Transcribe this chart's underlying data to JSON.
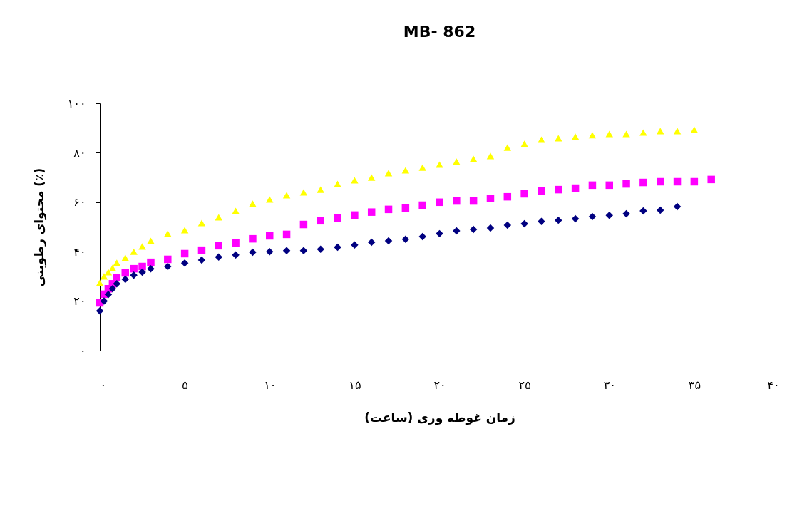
{
  "chart_data": {
    "type": "scatter",
    "title": "MB- 862",
    "xlabel": "زمان غوطه وری (ساعت)",
    "ylabel": "محتوای رطوبتی (٪)",
    "xlim": [
      0,
      40
    ],
    "ylim": [
      0,
      100
    ],
    "xticks": [
      {
        "value": 0,
        "label": "۰"
      },
      {
        "value": 5,
        "label": "۵"
      },
      {
        "value": 10,
        "label": "۱۰"
      },
      {
        "value": 15,
        "label": "۱۵"
      },
      {
        "value": 20,
        "label": "۲۰"
      },
      {
        "value": 25,
        "label": "۲۵"
      },
      {
        "value": 30,
        "label": "۳۰"
      },
      {
        "value": 35,
        "label": "۳۵"
      },
      {
        "value": 40,
        "label": "۴۰"
      }
    ],
    "yticks": [
      {
        "value": 0,
        "label": "۰"
      },
      {
        "value": 20,
        "label": "۲۰"
      },
      {
        "value": 40,
        "label": "۴۰"
      },
      {
        "value": 60,
        "label": "۶۰"
      },
      {
        "value": 80,
        "label": "۸۰"
      },
      {
        "value": 100,
        "label": "۱۰۰"
      }
    ],
    "grid": false,
    "legend": false,
    "series": [
      {
        "color": "#000080",
        "marker": "diamond",
        "x": [
          0,
          0.25,
          0.5,
          0.75,
          1,
          1.5,
          2,
          2.5,
          3,
          4,
          5,
          6,
          7,
          8,
          9,
          10,
          11,
          12,
          13,
          14,
          15,
          16,
          17,
          18,
          19,
          20,
          21,
          22,
          23,
          24,
          25,
          26,
          27,
          28,
          29,
          30,
          31,
          32,
          33,
          34
        ],
        "values": [
          16.1,
          20,
          22.7,
          25,
          27,
          28.8,
          30.5,
          31.7,
          33.1,
          34,
          35.4,
          36.6,
          37.8,
          38.7,
          39.8,
          40,
          40.4,
          40.4,
          41,
          41.8,
          42.7,
          43.8,
          44.4,
          45,
          46.1,
          47.3,
          48.4,
          49,
          49.6,
          50.7,
          51.3,
          52.2,
          52.7,
          53.3,
          54.2,
          54.7,
          55.3,
          56.5,
          56.8,
          58.2
        ]
      },
      {
        "color": "#ff00ff",
        "marker": "square",
        "x": [
          0,
          0.25,
          0.5,
          0.75,
          1,
          1.5,
          2,
          2.5,
          3,
          4,
          5,
          6,
          7,
          8,
          9,
          10,
          11,
          12,
          13,
          14,
          15,
          16,
          17,
          18,
          19,
          20,
          21,
          22,
          23,
          24,
          25,
          26,
          27,
          28,
          29,
          30,
          31,
          32,
          33,
          34,
          35,
          36
        ],
        "values": [
          19.3,
          22.8,
          25,
          27,
          29.5,
          31.4,
          33.1,
          34,
          35.7,
          36.9,
          39.2,
          40.6,
          42.4,
          43.5,
          45.2,
          46.4,
          47,
          51,
          52.5,
          53.6,
          54.8,
          56,
          57.1,
          57.6,
          58.8,
          60,
          60.5,
          60.5,
          61.6,
          62.2,
          63.4,
          64.6,
          65.1,
          65.7,
          66.9,
          66.9,
          67.4,
          68,
          68.3,
          68.3,
          68.3,
          69.2
        ]
      },
      {
        "color": "#ffff00",
        "marker": "triangle",
        "x": [
          0,
          0.25,
          0.5,
          0.75,
          1,
          1.5,
          2,
          2.5,
          3,
          4,
          5,
          6,
          7,
          8,
          9,
          10,
          11,
          12,
          13,
          14,
          15,
          16,
          17,
          18,
          19,
          20,
          21,
          22,
          23,
          24,
          25,
          26,
          27,
          28,
          29,
          30,
          31,
          32,
          33,
          34,
          35
        ],
        "values": [
          27.4,
          30,
          31.7,
          33.4,
          35.5,
          37.5,
          40,
          42.1,
          44.4,
          47.3,
          48.7,
          51.6,
          53.9,
          56.5,
          59.4,
          61.1,
          62.8,
          64,
          65.1,
          67.4,
          68.9,
          70,
          71.8,
          72.9,
          74,
          75.2,
          76.4,
          77.5,
          78.7,
          82.1,
          83.6,
          85.3,
          85.9,
          86.5,
          87.1,
          87.6,
          87.6,
          88.2,
          88.8,
          88.8,
          89.3
        ]
      }
    ]
  }
}
